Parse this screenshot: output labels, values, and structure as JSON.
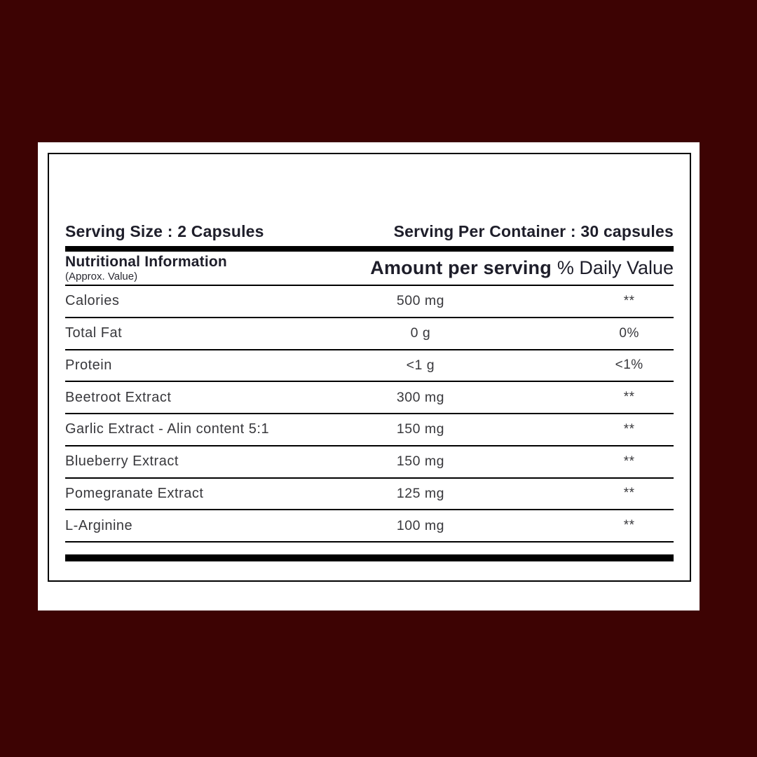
{
  "colors": {
    "background": "#3d0303",
    "card": "#ffffff",
    "line": "#000000",
    "heading_text": "#1e1e2a",
    "row_text": "#38383c"
  },
  "label": {
    "serving_size": "Serving Size : 2 Capsules",
    "serving_per_container": "Serving Per Container : 30 capsules",
    "header": {
      "title": "Nutritional Information",
      "subtitle": "(Approx. Value)",
      "amount_col": "Amount per serving",
      "daily_col": "% Daily Value"
    },
    "rows": [
      {
        "name": "Calories",
        "amount": "500 mg",
        "daily": "**"
      },
      {
        "name": "Total Fat",
        "amount": "0 g",
        "daily": "0%"
      },
      {
        "name": "Protein",
        "amount": "<1 g",
        "daily": "<1%"
      },
      {
        "name": "Beetroot Extract",
        "amount": "300 mg",
        "daily": "**"
      },
      {
        "name": "Garlic Extract - Alin content 5:1",
        "amount": "150 mg",
        "daily": "**"
      },
      {
        "name": "Blueberry Extract",
        "amount": "150 mg",
        "daily": "**"
      },
      {
        "name": "Pomegranate Extract",
        "amount": "125 mg",
        "daily": "**"
      },
      {
        "name": "L-Arginine",
        "amount": "100 mg",
        "daily": "**"
      }
    ]
  }
}
